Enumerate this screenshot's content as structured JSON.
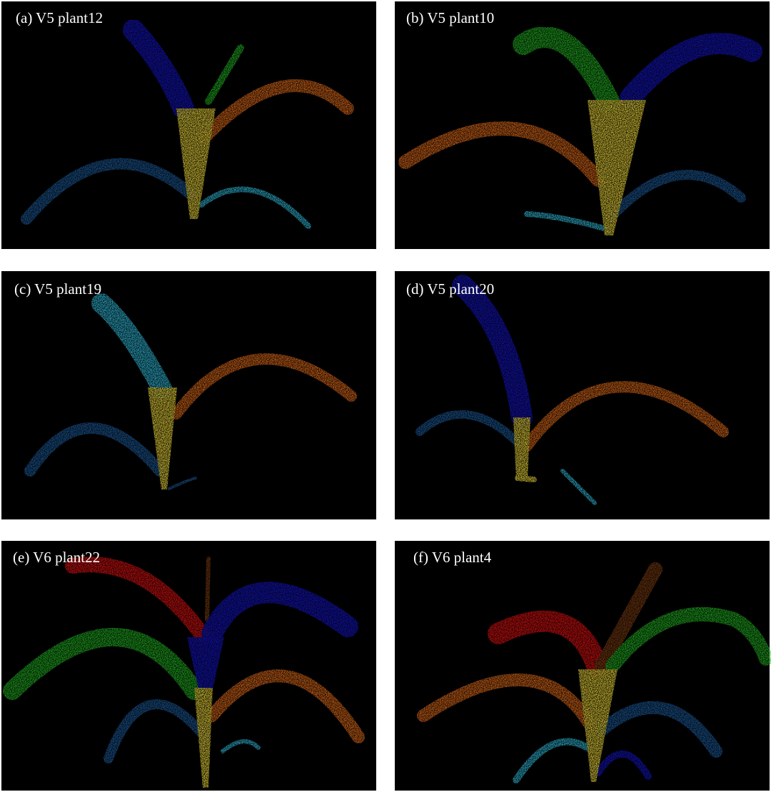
{
  "panels": [
    {
      "label": "(a) V5 plant12"
    },
    {
      "label": "(b) V5 plant10"
    },
    {
      "label": "(c) V5 plant19"
    },
    {
      "label": "(d) V5 plant20"
    },
    {
      "label": "(e) V6 plant22"
    },
    {
      "label": "(f) V6 plant4"
    }
  ]
}
